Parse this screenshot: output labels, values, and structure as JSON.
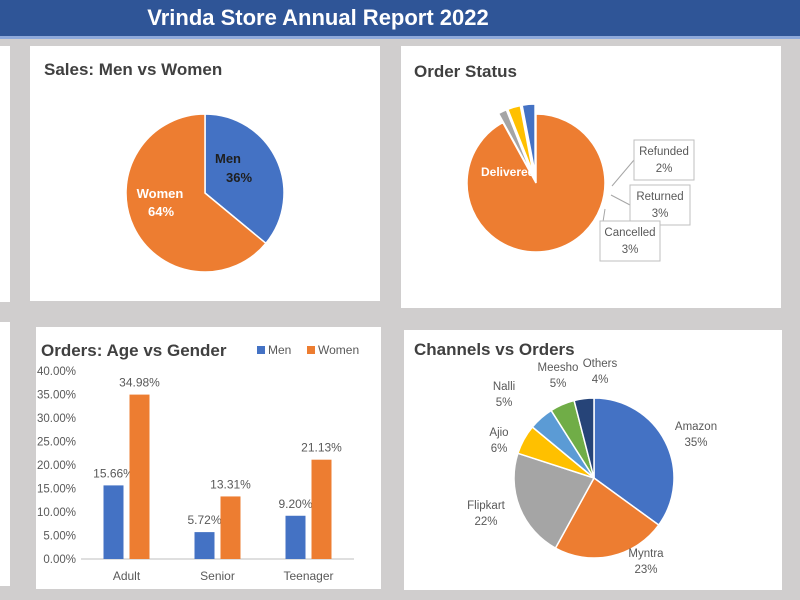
{
  "header": {
    "title": "Vrinda Store Annual Report 2022"
  },
  "colors": {
    "title_bg": "#2f5597",
    "men": "#4472c4",
    "women": "#ed7d31",
    "gray": "#a5a5a5",
    "gold": "#ffc000",
    "lightblue": "#5b9bd5",
    "green": "#70ad47",
    "navy": "#264478"
  },
  "chart_data": [
    {
      "type": "pie",
      "title": "Sales: Men vs Women",
      "slices": [
        {
          "label": "Men",
          "value": 36,
          "value_label": "36%",
          "color": "#4472c4"
        },
        {
          "label": "Women",
          "value": 64,
          "value_label": "64%",
          "color": "#ed7d31"
        }
      ]
    },
    {
      "type": "pie",
      "title": "Order Status",
      "slices": [
        {
          "label": "Delivered",
          "value": 92,
          "value_label": "",
          "color": "#ed7d31"
        },
        {
          "label": "Refunded",
          "value": 2,
          "value_label": "2%",
          "color": "#a5a5a5"
        },
        {
          "label": "Returned",
          "value": 3,
          "value_label": "3%",
          "color": "#ffc000"
        },
        {
          "label": "Cancelled",
          "value": 3,
          "value_label": "3%",
          "color": "#4472c4"
        }
      ]
    },
    {
      "type": "bar",
      "title": "Orders: Age vs Gender",
      "categories": [
        "Adult",
        "Senior",
        "Teenager"
      ],
      "series": [
        {
          "name": "Men",
          "values": [
            15.66,
            5.72,
            9.2
          ],
          "labels": [
            "15.66%",
            "5.72%",
            "9.20%"
          ],
          "color": "#4472c4"
        },
        {
          "name": "Women",
          "values": [
            34.98,
            13.31,
            21.13
          ],
          "labels": [
            "34.98%",
            "13.31%",
            "21.13%"
          ],
          "color": "#ed7d31"
        }
      ],
      "ylim": [
        0,
        40
      ],
      "yticks": [
        "0.00%",
        "5.00%",
        "10.00%",
        "15.00%",
        "20.00%",
        "25.00%",
        "30.00%",
        "35.00%",
        "40.00%"
      ],
      "legend": "top-right",
      "grid": false
    },
    {
      "type": "pie",
      "title": "Channels vs Orders",
      "slices": [
        {
          "label": "Amazon",
          "value": 35,
          "value_label": "35%",
          "color": "#4472c4"
        },
        {
          "label": "Myntra",
          "value": 23,
          "value_label": "23%",
          "color": "#ed7d31"
        },
        {
          "label": "Flipkart",
          "value": 22,
          "value_label": "22%",
          "color": "#a5a5a5"
        },
        {
          "label": "Ajio",
          "value": 6,
          "value_label": "6%",
          "color": "#ffc000"
        },
        {
          "label": "Nalli",
          "value": 5,
          "value_label": "5%",
          "color": "#5b9bd5"
        },
        {
          "label": "Meesho",
          "value": 5,
          "value_label": "5%",
          "color": "#70ad47"
        },
        {
          "label": "Others",
          "value": 4,
          "value_label": "4%",
          "color": "#264478"
        }
      ]
    }
  ]
}
